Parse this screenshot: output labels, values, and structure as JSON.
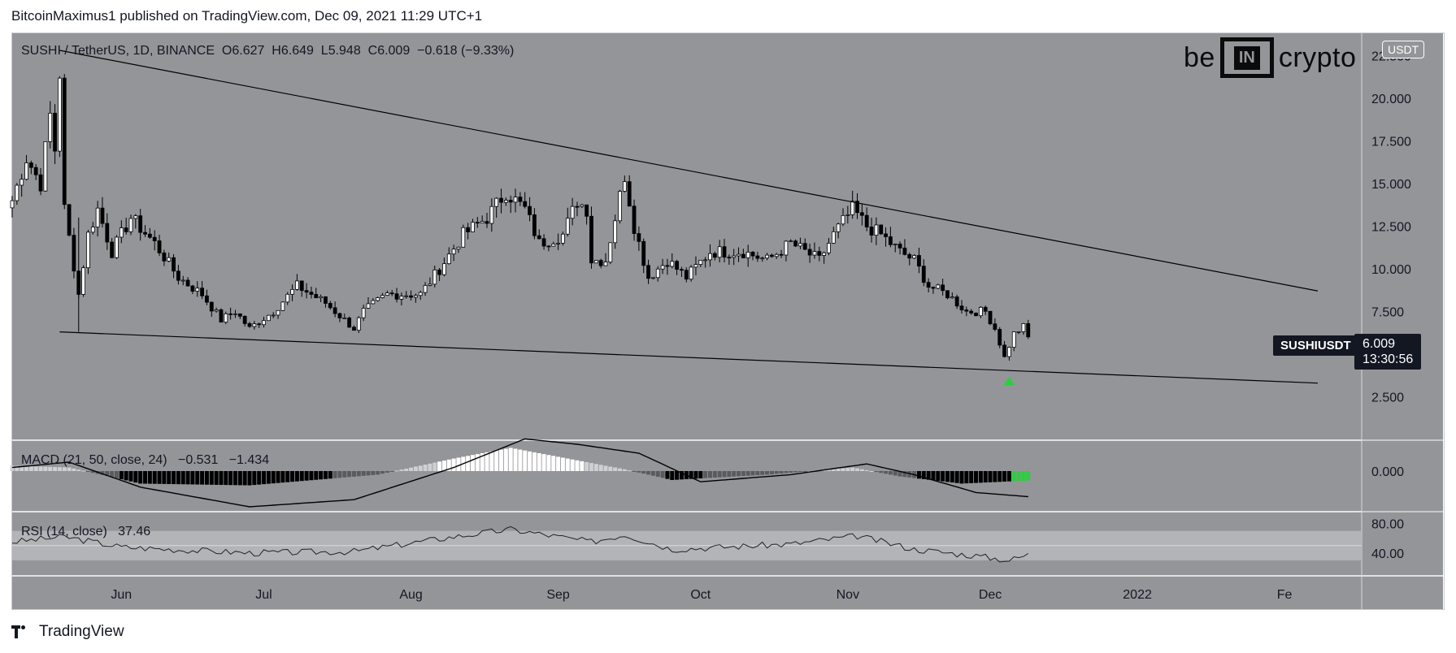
{
  "caption": "BitcoinMaximus1 published on TradingView.com, Dec 09, 2021 11:29 UTC+1",
  "footer": {
    "brand": "TradingView"
  },
  "logo": {
    "left": "be",
    "box": "IN",
    "right": "crypto"
  },
  "currency_tag": "USDT",
  "legend": {
    "symbol": "SUSHI / TetherUS, 1D, BINANCE",
    "open_label": "O",
    "open": "6.627",
    "high_label": "H",
    "high": "6.649",
    "low_label": "L",
    "low": "5.948",
    "close_label": "C",
    "close": "6.009",
    "change": "−0.618 (−9.33%)"
  },
  "last_price": {
    "symbol": "SUSHIUSDT",
    "price": "6.009",
    "countdown": "13:30:56"
  },
  "macd_legend": {
    "label": "MACD (21, 50, close, 24)",
    "v1": "−0.531",
    "v2": "−1.434"
  },
  "rsi_legend": {
    "label": "RSI (14, close)",
    "value": "37.46"
  },
  "colors": {
    "background": "#949599",
    "candle_up": "#ffffff",
    "candle_down": "#000000",
    "signal_green": "#2ecc40",
    "rsi_band": "#b3b4b8"
  },
  "chart_data": [
    {
      "type": "candlestick",
      "title": "SUSHI / TetherUS, 1D, BINANCE",
      "x_tick_labels": [
        "Jun",
        "Jul",
        "Aug",
        "Sep",
        "Oct",
        "Nov",
        "Dec",
        "2022",
        "Fe"
      ],
      "y_tick_labels": [
        "22.500",
        "20.000",
        "17.500",
        "15.000",
        "12.500",
        "10.000",
        "7.500",
        "2.500"
      ],
      "ylim": [
        0,
        23.8
      ],
      "date_range": [
        "2021-05-09",
        "2021-12-09"
      ],
      "close_anchors": [
        [
          "2021-05-09",
          14.0
        ],
        [
          "2021-05-12",
          16.5
        ],
        [
          "2021-05-15",
          15.0
        ],
        [
          "2021-05-17",
          19.0
        ],
        [
          "2021-05-18",
          17.0
        ],
        [
          "2021-05-19",
          21.5
        ],
        [
          "2021-05-20",
          13.5
        ],
        [
          "2021-05-23",
          8.5
        ],
        [
          "2021-05-25",
          12.0
        ],
        [
          "2021-05-27",
          13.5
        ],
        [
          "2021-05-30",
          11.0
        ],
        [
          "2021-06-03",
          13.0
        ],
        [
          "2021-06-08",
          11.5
        ],
        [
          "2021-06-13",
          9.5
        ],
        [
          "2021-06-18",
          8.5
        ],
        [
          "2021-06-22",
          7.0
        ],
        [
          "2021-06-25",
          7.5
        ],
        [
          "2021-06-28",
          6.5
        ],
        [
          "2021-07-03",
          7.5
        ],
        [
          "2021-07-08",
          9.0
        ],
        [
          "2021-07-14",
          8.0
        ],
        [
          "2021-07-20",
          6.5
        ],
        [
          "2021-07-22",
          7.5
        ],
        [
          "2021-07-27",
          8.5
        ],
        [
          "2021-08-03",
          8.5
        ],
        [
          "2021-08-07",
          10.0
        ],
        [
          "2021-08-12",
          12.0
        ],
        [
          "2021-08-17",
          13.0
        ],
        [
          "2021-08-21",
          14.5
        ],
        [
          "2021-08-25",
          13.5
        ],
        [
          "2021-08-28",
          11.5
        ],
        [
          "2021-09-02",
          12.0
        ],
        [
          "2021-09-05",
          14.0
        ],
        [
          "2021-09-07",
          13.5
        ],
        [
          "2021-09-08",
          10.5
        ],
        [
          "2021-09-11",
          10.5
        ],
        [
          "2021-09-15",
          15.5
        ],
        [
          "2021-09-17",
          12.5
        ],
        [
          "2021-09-20",
          9.5
        ],
        [
          "2021-09-24",
          10.5
        ],
        [
          "2021-09-28",
          9.5
        ],
        [
          "2021-10-03",
          11.0
        ],
        [
          "2021-10-10",
          11.0
        ],
        [
          "2021-10-15",
          10.5
        ],
        [
          "2021-10-20",
          11.5
        ],
        [
          "2021-10-26",
          10.5
        ],
        [
          "2021-10-29",
          12.0
        ],
        [
          "2021-11-02",
          13.5
        ],
        [
          "2021-11-05",
          12.5
        ],
        [
          "2021-11-08",
          12.0
        ],
        [
          "2021-11-12",
          11.0
        ],
        [
          "2021-11-15",
          10.5
        ],
        [
          "2021-11-18",
          9.0
        ],
        [
          "2021-11-22",
          8.5
        ],
        [
          "2021-11-26",
          7.5
        ],
        [
          "2021-11-30",
          7.5
        ],
        [
          "2021-12-02",
          6.5
        ],
        [
          "2021-12-04",
          4.8
        ],
        [
          "2021-12-06",
          6.2
        ],
        [
          "2021-12-08",
          6.6
        ],
        [
          "2021-12-09",
          6.009
        ]
      ],
      "trendlines": [
        {
          "name": "descending resistance",
          "from": [
            "2021-05-19",
            22.8
          ],
          "to": [
            "2022-02-08",
            8.7
          ]
        },
        {
          "name": "support",
          "from": [
            "2021-05-19",
            6.3
          ],
          "to": [
            "2022-02-08",
            3.3
          ]
        }
      ],
      "markers": [
        {
          "name": "bounce",
          "date": "2021-12-05",
          "value": 3.4
        }
      ],
      "annotations": [
        "SUSHIUSDT 6.009"
      ]
    },
    {
      "type": "line",
      "title": "MACD (21, 50, close, 24)",
      "y_tick_labels": [
        "0.000"
      ],
      "series": [
        {
          "values": [
            -1.434
          ]
        },
        {
          "values": [
            -0.531
          ]
        }
      ]
    },
    {
      "type": "line",
      "title": "RSI (14, close)",
      "y_tick_labels": [
        "80.00",
        "40.00"
      ],
      "band": [
        30,
        70
      ],
      "series": [
        {
          "values": [
            37.46
          ]
        }
      ]
    }
  ]
}
